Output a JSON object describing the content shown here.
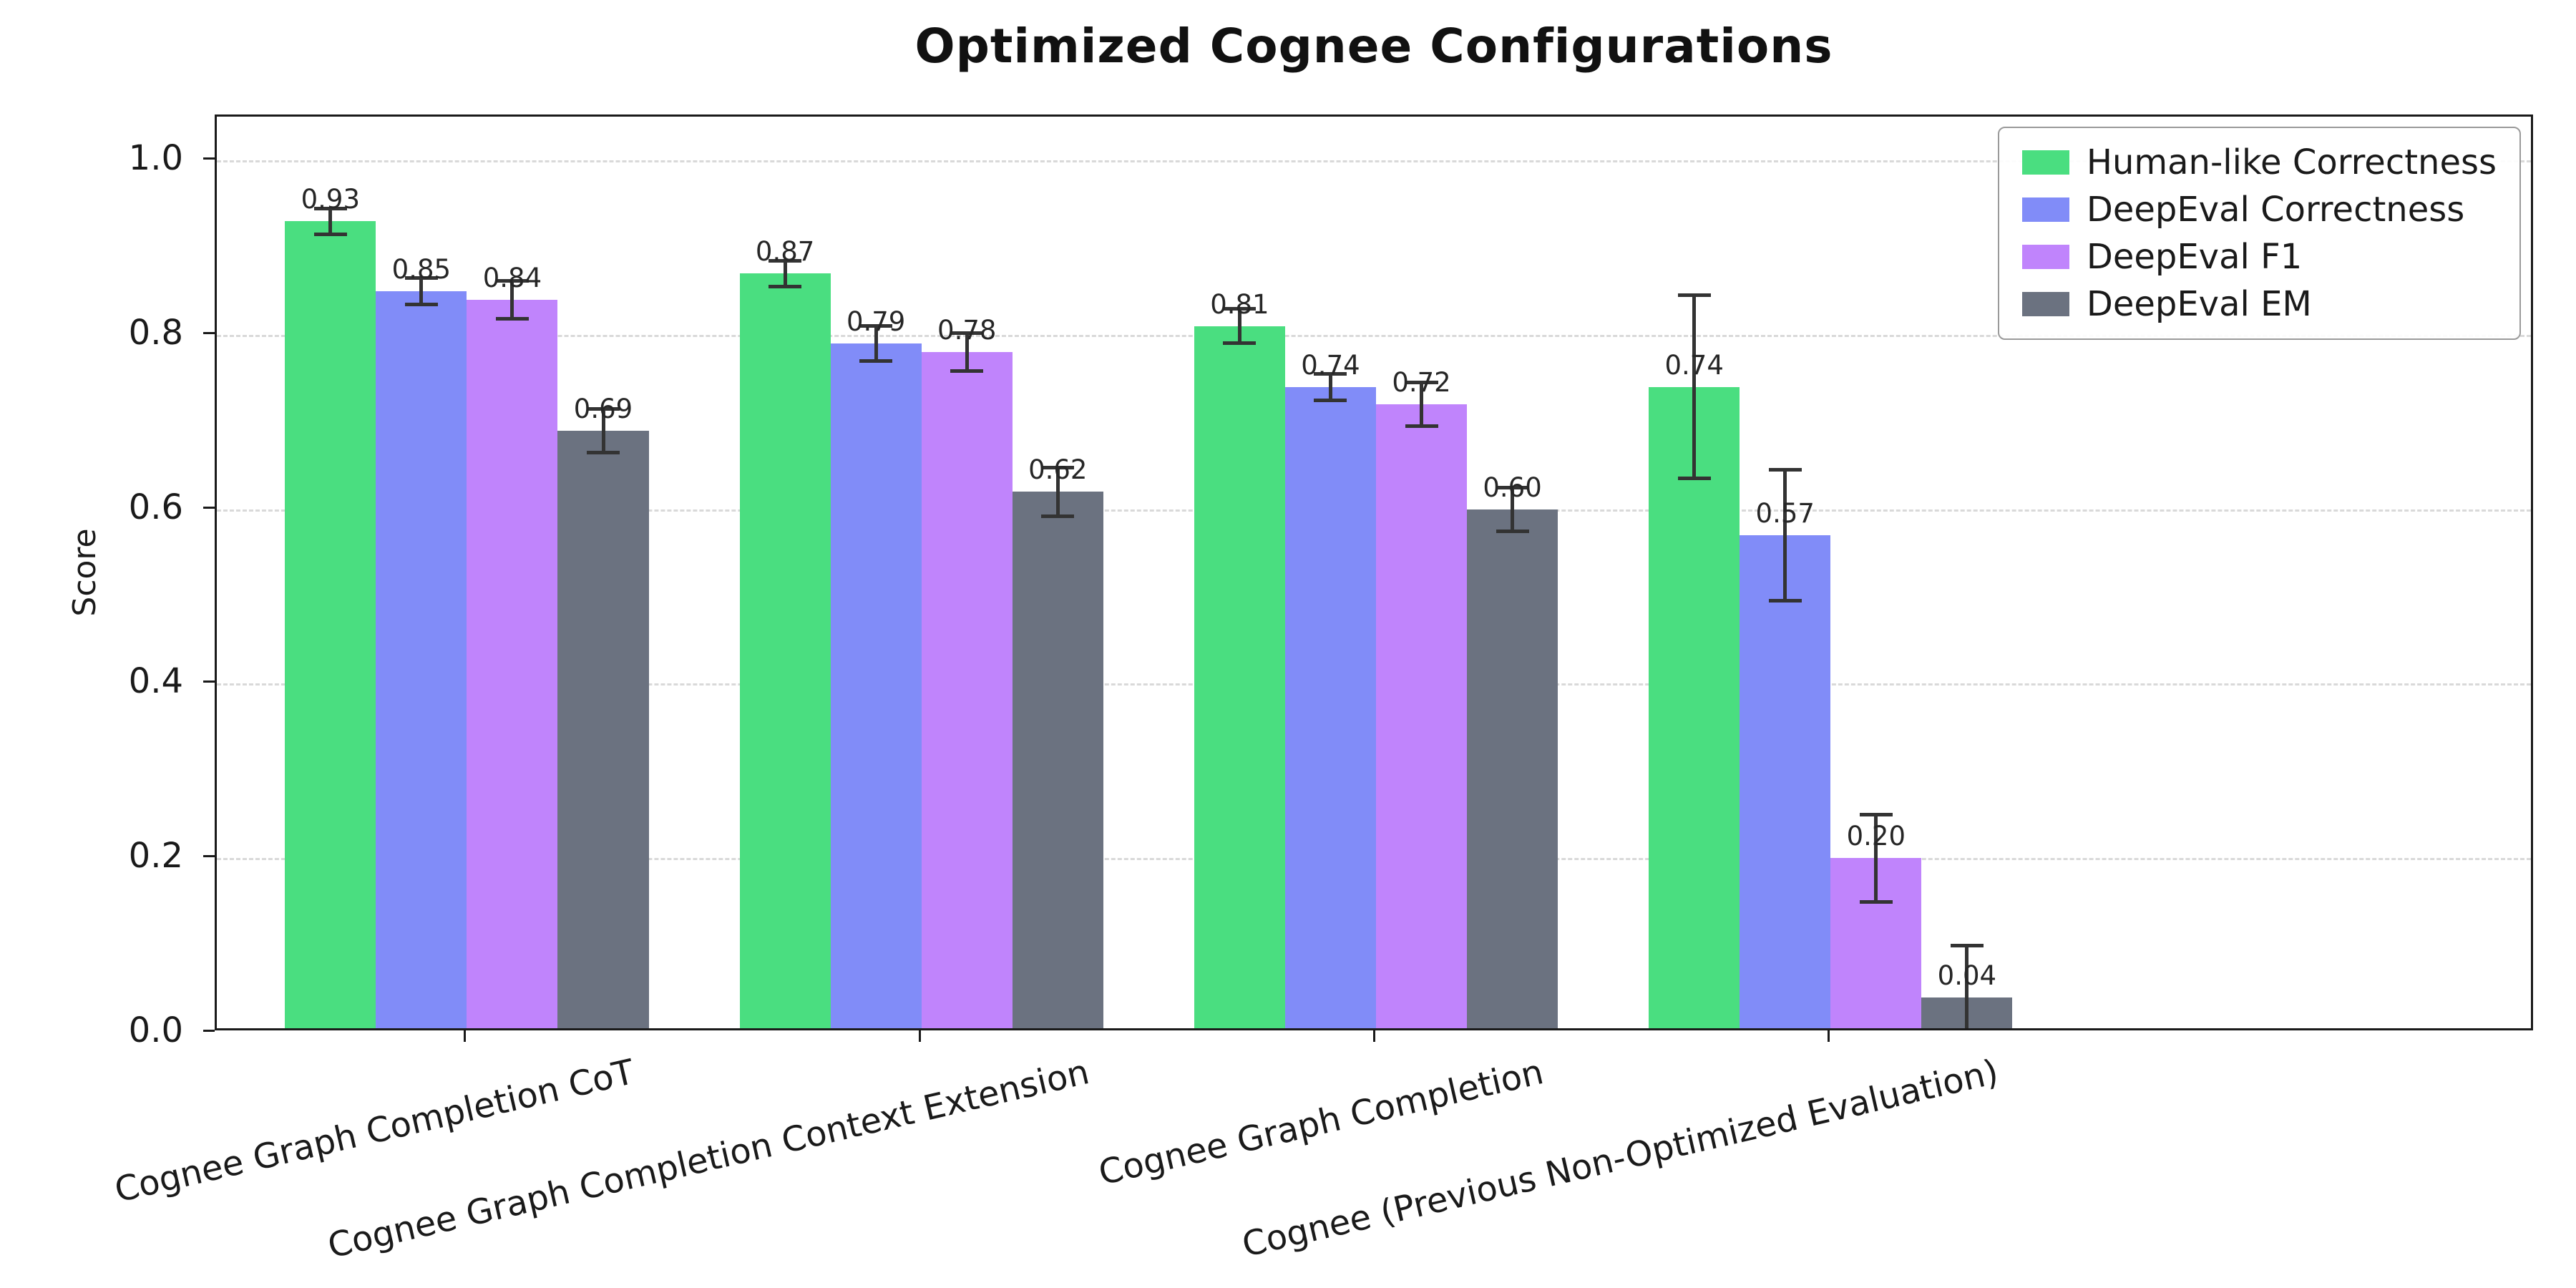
{
  "chart_data": {
    "type": "bar",
    "title": "Optimized Cognee Configurations",
    "ylabel": "Score",
    "xlabel": "",
    "ylim": [
      0,
      1.05
    ],
    "yticks": [
      0.0,
      0.2,
      0.4,
      0.6,
      0.8,
      1.0
    ],
    "grid": "horizontal-dashed",
    "legend_position": "upper-right",
    "error_bar_color": "#333333",
    "value_labels": true,
    "categories": [
      "Cognee Graph Completion CoT",
      "Cognee Graph Completion Context Extension",
      "Cognee Graph Completion",
      "Cognee (Previous Non-Optimized Evaluation)"
    ],
    "series": [
      {
        "name": "Human-like Correctness",
        "color": "#4ade80",
        "values": [
          0.93,
          0.87,
          0.81,
          0.74
        ],
        "errors": [
          0.015,
          0.015,
          0.02,
          0.105
        ]
      },
      {
        "name": "DeepEval Correctness",
        "color": "#818cf8",
        "values": [
          0.85,
          0.79,
          0.74,
          0.57
        ],
        "errors": [
          0.015,
          0.02,
          0.015,
          0.075
        ]
      },
      {
        "name": "DeepEval F1",
        "color": "#c084fc",
        "values": [
          0.84,
          0.78,
          0.72,
          0.2
        ],
        "errors": [
          0.022,
          0.022,
          0.025,
          0.05
        ]
      },
      {
        "name": "DeepEval EM",
        "color": "#6b7280",
        "values": [
          0.69,
          0.62,
          0.6,
          0.04
        ],
        "errors": [
          0.025,
          0.028,
          0.025,
          0.06
        ]
      }
    ]
  }
}
